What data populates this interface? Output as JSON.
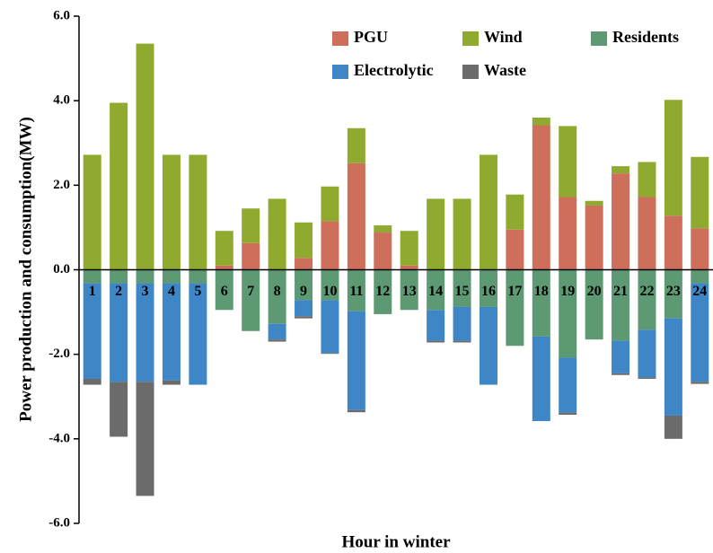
{
  "chart_data": {
    "type": "bar",
    "stacked": true,
    "y_label": "Power production and consumption(MW)",
    "x_label": "Hour in winter",
    "categories": [
      "1",
      "2",
      "3",
      "4",
      "5",
      "6",
      "7",
      "8",
      "9",
      "10",
      "11",
      "12",
      "13",
      "14",
      "15",
      "16",
      "17",
      "18",
      "19",
      "20",
      "21",
      "22",
      "23",
      "24"
    ],
    "series": [
      {
        "name": "PGU",
        "color": "#cd6f5a",
        "values": [
          0,
          0,
          0,
          0,
          0,
          0.1,
          0.63,
          0,
          0.28,
          1.15,
          2.52,
          0.88,
          0.1,
          0,
          0,
          0,
          0.95,
          3.42,
          1.72,
          1.52,
          2.28,
          1.72,
          1.28,
          0.98
        ]
      },
      {
        "name": "Wind",
        "color": "#8faa2e",
        "values": [
          2.72,
          3.95,
          5.35,
          2.72,
          2.72,
          0.82,
          0.82,
          1.68,
          0.84,
          0.82,
          0.83,
          0.17,
          0.82,
          1.68,
          1.68,
          2.72,
          0.83,
          0.18,
          1.68,
          0.11,
          0.17,
          0.83,
          2.74,
          1.69
        ]
      },
      {
        "name": "Residents",
        "color": "#5d9a74",
        "values": [
          -0.32,
          -0.32,
          -0.32,
          -0.32,
          -0.32,
          -0.95,
          -1.45,
          -1.28,
          -0.72,
          -0.72,
          -0.98,
          -1.05,
          -0.95,
          -0.95,
          -0.88,
          -0.88,
          -1.8,
          -1.58,
          -2.08,
          -1.65,
          -1.68,
          -1.42,
          -1.15,
          -0.32
        ]
      },
      {
        "name": "Electrolytic",
        "color": "#3f86c6",
        "values": [
          -2.26,
          -2.33,
          -2.33,
          -2.3,
          -2.4,
          0,
          0,
          -0.37,
          -0.38,
          -1.25,
          -2.34,
          0,
          0,
          -0.73,
          -0.8,
          -1.84,
          0,
          -2.0,
          -1.3,
          0,
          -0.77,
          -1.13,
          -2.3,
          -2.33
        ]
      },
      {
        "name": "Waste",
        "color": "#6b6b6b",
        "values": [
          -0.14,
          -1.3,
          -2.7,
          -0.1,
          0,
          0,
          0,
          -0.05,
          -0.05,
          -0.02,
          -0.05,
          0,
          0,
          -0.04,
          -0.04,
          0,
          0,
          0,
          -0.05,
          0,
          -0.04,
          -0.03,
          -0.55,
          -0.05
        ]
      }
    ],
    "ylim": [
      -6,
      6
    ],
    "yticks": [
      {
        "value": -6,
        "label": "-6.0"
      },
      {
        "value": -4,
        "label": "-4.0"
      },
      {
        "value": -2,
        "label": "-2.0"
      },
      {
        "value": 0,
        "label": "0.0"
      },
      {
        "value": 2,
        "label": "2.0"
      },
      {
        "value": 4,
        "label": "4.0"
      },
      {
        "value": 6,
        "label": "6.0"
      }
    ]
  }
}
